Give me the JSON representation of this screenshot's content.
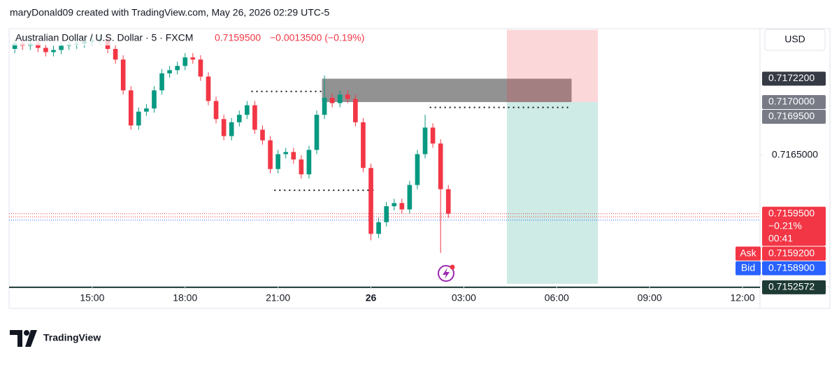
{
  "header": "maryDonald09 created with TradingView.com, May 26, 2026 02:29 UTC-5",
  "footer": "TradingView",
  "chart_data": {
    "type": "candlestick",
    "title": "Australian Dollar / U.S. Dollar · 5 · FXCM",
    "last": "0.7159500",
    "change": "−0.0013500 (−0.19%)",
    "currency": "USD",
    "up_color": "#089981",
    "down_color": "#f23645",
    "xlim": [
      12.316,
      36.564
    ],
    "ylim": [
      0.715296,
      0.717684
    ],
    "xticks": [
      {
        "value": 15,
        "label": "15:00"
      },
      {
        "value": 18,
        "label": "18:00"
      },
      {
        "value": 21,
        "label": "21:00"
      },
      {
        "value": 24,
        "label": "26"
      },
      {
        "value": 27,
        "label": "03:00"
      },
      {
        "value": 30,
        "label": "06:00"
      },
      {
        "value": 33,
        "label": "09:00"
      },
      {
        "value": 36,
        "label": "12:00"
      }
    ],
    "yticks": [
      {
        "value": 0.7165,
        "label": "0.7165000"
      }
    ],
    "x": [
      12.5,
      12.75,
      13,
      13.25,
      13.5,
      13.75,
      14,
      14.25,
      14.5,
      14.75,
      15,
      15.25,
      15.5,
      15.75,
      16,
      16.25,
      16.5,
      16.75,
      17,
      17.25,
      17.5,
      17.75,
      18,
      18.25,
      18.5,
      18.75,
      19,
      19.25,
      19.5,
      19.75,
      20,
      20.25,
      20.5,
      20.75,
      21,
      21.25,
      21.5,
      21.75,
      22,
      22.25,
      22.5,
      22.75,
      23,
      23.25,
      23.5,
      23.75,
      24,
      24.25,
      24.5,
      24.75,
      25,
      25.25,
      25.5,
      25.75,
      26,
      26.25,
      26.5
    ],
    "open": [
      0.7175,
      0.71755,
      0.71753,
      0.71755,
      0.71751,
      0.71747,
      0.71749,
      0.71753,
      0.71754,
      0.71755,
      0.71757,
      0.71758,
      0.71759,
      0.7175,
      0.7174,
      0.71711,
      0.71678,
      0.71691,
      0.71694,
      0.71711,
      0.71727,
      0.7173,
      0.71734,
      0.71742,
      0.7174,
      0.71724,
      0.71701,
      0.71684,
      0.71668,
      0.71681,
      0.71688,
      0.71697,
      0.71674,
      0.71664,
      0.71637,
      0.71651,
      0.71653,
      0.71646,
      0.71632,
      0.71655,
      0.71688,
      0.71704,
      0.71699,
      0.71707,
      0.71703,
      0.71681,
      0.71638,
      0.71576,
      0.71587,
      0.71602,
      0.71605,
      0.71599,
      0.71622,
      0.71651,
      0.71676,
      0.71661,
      0.71618
    ],
    "high": [
      0.71759,
      0.71759,
      0.71759,
      0.71759,
      0.71755,
      0.71753,
      0.71757,
      0.71758,
      0.71759,
      0.71761,
      0.71762,
      0.71763,
      0.71763,
      0.71754,
      0.71744,
      0.71715,
      0.71695,
      0.71698,
      0.71715,
      0.71731,
      0.71734,
      0.71738,
      0.71746,
      0.71746,
      0.71744,
      0.71728,
      0.71705,
      0.71688,
      0.71685,
      0.71692,
      0.71701,
      0.71701,
      0.71678,
      0.71668,
      0.71655,
      0.71657,
      0.71657,
      0.7165,
      0.71659,
      0.71692,
      0.71725,
      0.71708,
      0.71711,
      0.71711,
      0.71707,
      0.71685,
      0.71642,
      0.71591,
      0.71606,
      0.71609,
      0.71609,
      0.71626,
      0.71655,
      0.71688,
      0.7168,
      0.71665,
      0.71622
    ],
    "low": [
      0.71746,
      0.71749,
      0.71749,
      0.71747,
      0.71743,
      0.71743,
      0.71745,
      0.71749,
      0.7175,
      0.71751,
      0.71753,
      0.71754,
      0.71746,
      0.71736,
      0.71707,
      0.71674,
      0.71674,
      0.71687,
      0.7169,
      0.71707,
      0.71723,
      0.71726,
      0.7173,
      0.71736,
      0.7172,
      0.71697,
      0.7168,
      0.71664,
      0.71664,
      0.71677,
      0.71684,
      0.7167,
      0.7166,
      0.71633,
      0.71633,
      0.71647,
      0.71642,
      0.71628,
      0.71628,
      0.71651,
      0.71684,
      0.71695,
      0.71695,
      0.71699,
      0.71677,
      0.71634,
      0.7157,
      0.71572,
      0.71583,
      0.71598,
      0.71595,
      0.71595,
      0.71618,
      0.71647,
      0.71657,
      0.71558,
      0.71591
    ],
    "close": [
      0.71755,
      0.71753,
      0.71755,
      0.71751,
      0.71747,
      0.71749,
      0.71753,
      0.71754,
      0.71755,
      0.71757,
      0.71758,
      0.71759,
      0.7175,
      0.7174,
      0.71711,
      0.71678,
      0.71691,
      0.71694,
      0.71711,
      0.71727,
      0.7173,
      0.71734,
      0.71742,
      0.7174,
      0.71724,
      0.71701,
      0.71684,
      0.71668,
      0.71681,
      0.71688,
      0.71697,
      0.71674,
      0.71664,
      0.71637,
      0.71651,
      0.71653,
      0.71646,
      0.71632,
      0.71655,
      0.71688,
      0.71704,
      0.71699,
      0.71707,
      0.71703,
      0.71681,
      0.71638,
      0.71576,
      0.71587,
      0.71602,
      0.71605,
      0.71599,
      0.71622,
      0.71651,
      0.71676,
      0.71661,
      0.71618,
      0.71595
    ],
    "zones": [
      {
        "x": [
          22.42,
          30.48
        ],
        "y": [
          0.717,
          0.71722
        ],
        "color": "rgba(110,110,110,0.75)"
      },
      {
        "x": [
          28.39,
          31.33
        ],
        "y": [
          0.717,
          0.71768
        ],
        "color": "rgba(242,54,69,0.2)"
      },
      {
        "x": [
          28.39,
          31.33
        ],
        "y": [
          0.71529,
          0.717
        ],
        "color": "rgba(8,153,129,0.2)"
      }
    ],
    "dotted_lines": [
      {
        "x": [
          20.14,
          22.42
        ],
        "y": 0.7171
      },
      {
        "x": [
          25.9,
          30.48
        ],
        "y": 0.71695
      },
      {
        "x": [
          20.88,
          24.09
        ],
        "y": 0.71617
      }
    ],
    "price_lines": [
      {
        "y": 0.71595,
        "color": "#f23645"
      },
      {
        "y": 0.71592,
        "color": "#f23645"
      },
      {
        "y": 0.71589,
        "color": "#2962ff"
      }
    ],
    "base_line": 0.7152572,
    "price_labels": [
      {
        "value": 0.71722,
        "label": "0.7172200",
        "color": "#363a45"
      },
      {
        "value": 0.717,
        "label": "0.7170000",
        "color": "#787b86"
      },
      {
        "value": 0.71695,
        "label": "0.7169500",
        "color": "#787b86"
      },
      {
        "value": 0.71595,
        "label": "0.7159500",
        "sub": [
          "−0.21%",
          "00:41"
        ],
        "color": "#f23645"
      },
      {
        "value": 0.71592,
        "label": "0.7159200",
        "tag": "Ask",
        "color": "#f23645"
      },
      {
        "value": 0.71589,
        "label": "0.7158900",
        "tag": "Bid",
        "color": "#2962ff"
      },
      {
        "value": 0.7152572,
        "label": "0.7152572",
        "color": "#1e3a34"
      }
    ]
  }
}
